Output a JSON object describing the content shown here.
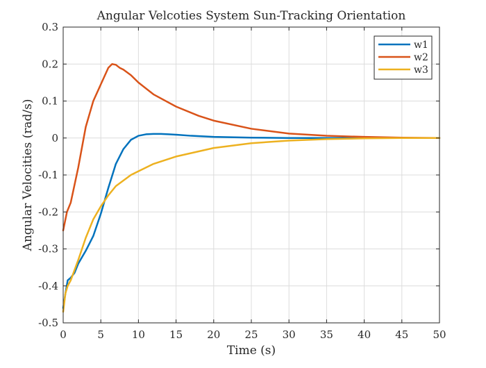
{
  "chart_data": {
    "type": "line",
    "title": "Angular Velcoties System Sun-Tracking Orientation",
    "xlabel": "Time (s)",
    "ylabel": "Angular Velocities (rad/s)",
    "xlim": [
      0,
      50
    ],
    "ylim": [
      -0.5,
      0.3
    ],
    "xticks": [
      0,
      5,
      10,
      15,
      20,
      25,
      30,
      35,
      40,
      45,
      50
    ],
    "yticks": [
      -0.5,
      -0.4,
      -0.3,
      -0.2,
      -0.1,
      0,
      0.1,
      0.2,
      0.3
    ],
    "xtick_labels": [
      "0",
      "5",
      "10",
      "15",
      "20",
      "25",
      "30",
      "35",
      "40",
      "45",
      "50"
    ],
    "ytick_labels": [
      "-0.5",
      "-0.4",
      "-0.3",
      "-0.2",
      "-0.1",
      "0",
      "0.1",
      "0.2",
      "0.3"
    ],
    "grid": true,
    "legend_position": "top-right",
    "series": [
      {
        "name": "w1",
        "color": "#0072BD",
        "x": [
          0,
          0.3,
          0.6,
          1,
          1.5,
          2,
          3,
          4,
          5,
          6,
          7,
          8,
          9,
          10,
          11,
          12,
          13,
          14,
          15,
          17,
          20,
          25,
          30,
          35,
          40,
          45,
          50
        ],
        "y": [
          -0.46,
          -0.42,
          -0.385,
          -0.378,
          -0.365,
          -0.34,
          -0.305,
          -0.265,
          -0.205,
          -0.135,
          -0.07,
          -0.03,
          -0.005,
          0.006,
          0.01,
          0.011,
          0.011,
          0.01,
          0.009,
          0.006,
          0.003,
          0.001,
          0.0,
          0.0,
          0.0,
          0.0,
          0.0
        ]
      },
      {
        "name": "w2",
        "color": "#D95319",
        "x": [
          0,
          0.5,
          1,
          2,
          3,
          4,
          5,
          6,
          6.5,
          7,
          7.5,
          8,
          9,
          10,
          12,
          15,
          18,
          20,
          25,
          30,
          35,
          40,
          45,
          50
        ],
        "y": [
          -0.25,
          -0.2,
          -0.175,
          -0.08,
          0.03,
          0.1,
          0.145,
          0.19,
          0.2,
          0.198,
          0.19,
          0.185,
          0.17,
          0.15,
          0.118,
          0.085,
          0.06,
          0.047,
          0.025,
          0.012,
          0.006,
          0.003,
          0.001,
          0.0
        ]
      },
      {
        "name": "w3",
        "color": "#EDB120",
        "x": [
          0,
          0.3,
          0.6,
          1,
          2,
          3,
          4,
          5,
          6,
          7,
          8,
          9,
          10,
          12,
          15,
          20,
          25,
          30,
          35,
          40,
          45,
          50
        ],
        "y": [
          -0.47,
          -0.42,
          -0.4,
          -0.385,
          -0.33,
          -0.27,
          -0.22,
          -0.185,
          -0.155,
          -0.13,
          -0.115,
          -0.1,
          -0.09,
          -0.07,
          -0.05,
          -0.027,
          -0.014,
          -0.007,
          -0.003,
          -0.001,
          0.0,
          0.0
        ]
      }
    ]
  }
}
